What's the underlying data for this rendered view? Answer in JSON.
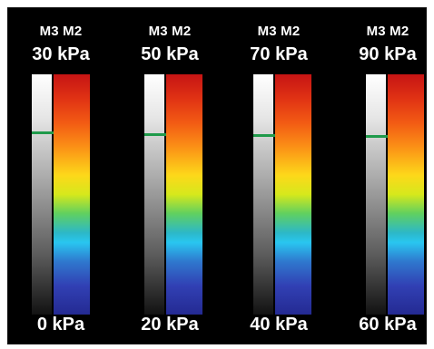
{
  "scales": [
    {
      "marker_label": "M3 M2",
      "max_label": "30 kPa",
      "min_label": "0 kPa"
    },
    {
      "marker_label": "M3 M2",
      "max_label": "50 kPa",
      "min_label": "20 kPa"
    },
    {
      "marker_label": "M3 M2",
      "max_label": "70 kPa",
      "min_label": "40 kPa"
    },
    {
      "marker_label": "M3 M2",
      "max_label": "90 kPa",
      "min_label": "60 kPa"
    }
  ],
  "colors": {
    "background": "#000000",
    "marker": "#1f9a4a",
    "spectrum_top": "#c61414",
    "spectrum_bottom": "#242a92"
  }
}
